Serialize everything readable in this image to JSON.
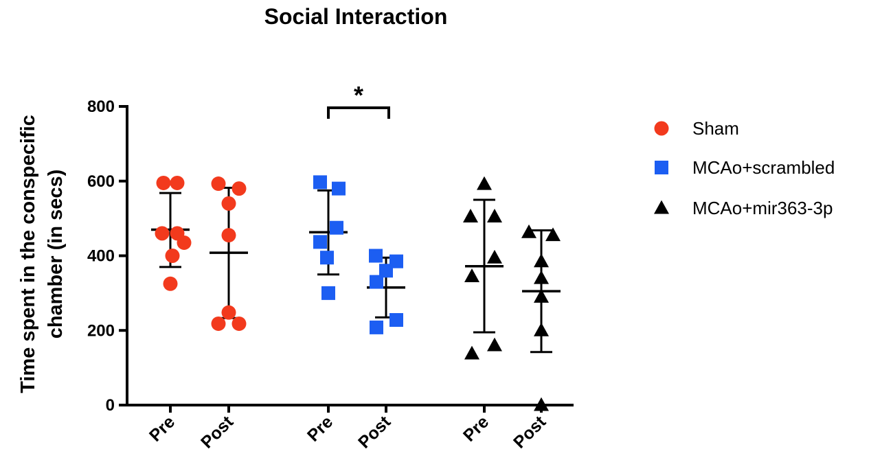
{
  "chart_data": {
    "type": "scatter",
    "title": "Social Interaction",
    "ylabel_line1": "Time spent in the conspecific",
    "ylabel_line2": "chamber (in secs)",
    "xlabel": "",
    "ylim": [
      0,
      800
    ],
    "yticks": [
      0,
      200,
      400,
      600,
      800
    ],
    "ytick_labels": [
      "0",
      "200",
      "400",
      "600",
      "800"
    ],
    "categories": [
      "Pre",
      "Post",
      "Pre",
      "Post",
      "Pre",
      "Post"
    ],
    "series": [
      {
        "name": "Sham",
        "marker": "circle",
        "color": "#f23a1d",
        "groups": [
          {
            "label": "Pre",
            "mean": 470,
            "sd_upper": 568,
            "sd_lower": 370,
            "points": [
              595,
              595,
              460,
              460,
              435,
              400,
              325
            ]
          },
          {
            "label": "Post",
            "mean": 408,
            "sd_upper": 582,
            "sd_lower": 233,
            "points": [
              593,
              580,
              540,
              455,
              248,
              218,
              218
            ]
          }
        ]
      },
      {
        "name": "MCAo+scrambled",
        "marker": "square",
        "color": "#1c5ef2",
        "groups": [
          {
            "label": "Pre",
            "mean": 463,
            "sd_upper": 575,
            "sd_lower": 350,
            "points": [
              597,
              580,
              475,
              437,
              395,
              300
            ]
          },
          {
            "label": "Post",
            "mean": 315,
            "sd_upper": 395,
            "sd_lower": 235,
            "points": [
              400,
              385,
              360,
              330,
              228,
              208
            ]
          }
        ]
      },
      {
        "name": "MCAo+mir363-3p",
        "marker": "triangle",
        "color": "#000000",
        "groups": [
          {
            "label": "Pre",
            "mean": 372,
            "sd_upper": 550,
            "sd_lower": 195,
            "points": [
              592,
              505,
              505,
              395,
              345,
              160,
              138
            ]
          },
          {
            "label": "Post",
            "mean": 305,
            "sd_upper": 468,
            "sd_lower": 142,
            "points": [
              463,
              455,
              385,
              340,
              290,
              200,
              0
            ]
          }
        ]
      }
    ],
    "annotations": [
      {
        "text": "*",
        "between": "MCAo+scrambled Pre vs Post",
        "bracket_value": 778
      }
    ],
    "legend": {
      "position": "right",
      "entries": [
        "Sham",
        "MCAo+scrambled",
        "MCAo+mir363-3p"
      ]
    }
  }
}
